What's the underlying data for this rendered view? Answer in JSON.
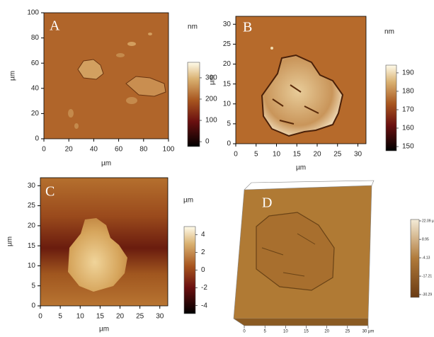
{
  "panels": [
    {
      "label": "A",
      "xlim": [
        0,
        100
      ],
      "ylim": [
        0,
        100
      ],
      "xticks": [
        0,
        20,
        40,
        60,
        80,
        100
      ],
      "yticks": [
        0,
        20,
        40,
        60,
        80,
        100
      ],
      "xlabel": "µm",
      "ylabel": "µm",
      "colorbar": {
        "unit": "nm",
        "lim": [
          -23,
          373
        ],
        "ticks": [
          0,
          100,
          200,
          300
        ]
      }
    },
    {
      "label": "B",
      "xlim": [
        0,
        32
      ],
      "ylim": [
        0,
        32
      ],
      "xticks": [
        0,
        5,
        10,
        15,
        20,
        25,
        30
      ],
      "yticks": [
        0,
        5,
        10,
        15,
        20,
        25,
        30
      ],
      "xlabel": "µm",
      "ylabel": "µm",
      "colorbar": {
        "unit": "nm",
        "lim": [
          147.7,
          194.2
        ],
        "ticks": [
          150,
          160,
          170,
          180,
          190
        ]
      }
    },
    {
      "label": "C",
      "xlim": [
        0,
        32
      ],
      "ylim": [
        0,
        32
      ],
      "xticks": [
        0,
        5,
        10,
        15,
        20,
        25,
        30
      ],
      "yticks": [
        0,
        5,
        10,
        15,
        20,
        25,
        30
      ],
      "xlabel": "µm",
      "ylabel": "µm",
      "colorbar": {
        "unit": "µm",
        "lim": [
          -4.9,
          4.9
        ],
        "ticks": [
          -4,
          -2,
          0,
          2,
          4
        ]
      }
    },
    {
      "label": "D",
      "xlim": [
        0,
        30
      ],
      "xticks": [
        0,
        5,
        10,
        15,
        20,
        25,
        {
          "value": 30,
          "label": "30 µm"
        }
      ],
      "colorbar": {
        "lim": [
          -32.3,
          23.1
        ],
        "ticks": [
          {
            "value": 22.09,
            "label": "22.09 µm"
          },
          8.95,
          -4.13,
          -17.21,
          -30.29
        ]
      }
    }
  ]
}
